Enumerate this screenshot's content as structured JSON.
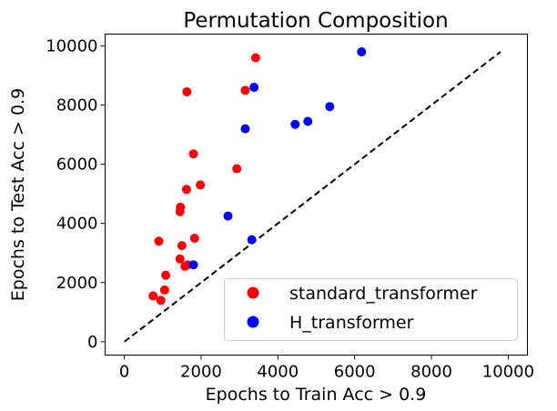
{
  "chart_data": {
    "type": "scatter",
    "title": "Permutation Composition",
    "xlabel": "Epochs to Train Acc > 0.9",
    "ylabel": "Epochs to Test Acc > 0.9",
    "xlim": [
      -500,
      10500
    ],
    "ylim": [
      -450,
      10400
    ],
    "xticks": [
      0,
      2000,
      4000,
      6000,
      8000,
      10000
    ],
    "yticks": [
      0,
      2000,
      4000,
      6000,
      8000,
      10000
    ],
    "grid": false,
    "legend_position": "lower-right",
    "reference_line": {
      "style": "dashed",
      "color": "#000000",
      "from": [
        0,
        0
      ],
      "to": [
        9800,
        9800
      ]
    },
    "series": [
      {
        "name": "standard_transformer",
        "color": "#ff0000",
        "points": [
          [
            750,
            1550
          ],
          [
            950,
            1400
          ],
          [
            1050,
            1750
          ],
          [
            1080,
            2250
          ],
          [
            900,
            3400
          ],
          [
            1450,
            2800
          ],
          [
            1580,
            2550
          ],
          [
            1650,
            2600
          ],
          [
            1500,
            3250
          ],
          [
            1830,
            3500
          ],
          [
            1450,
            4400
          ],
          [
            1460,
            4550
          ],
          [
            1620,
            5150
          ],
          [
            1980,
            5300
          ],
          [
            1800,
            6350
          ],
          [
            2930,
            5850
          ],
          [
            1630,
            8450
          ],
          [
            3150,
            8500
          ],
          [
            3420,
            9600
          ]
        ]
      },
      {
        "name": "H_transformer",
        "color": "#0000ff",
        "points": [
          [
            1800,
            2600
          ],
          [
            3320,
            3450
          ],
          [
            2700,
            4250
          ],
          [
            3150,
            7200
          ],
          [
            3380,
            8600
          ],
          [
            4450,
            7350
          ],
          [
            4780,
            7450
          ],
          [
            5350,
            7950
          ],
          [
            6180,
            9800
          ]
        ]
      }
    ]
  }
}
